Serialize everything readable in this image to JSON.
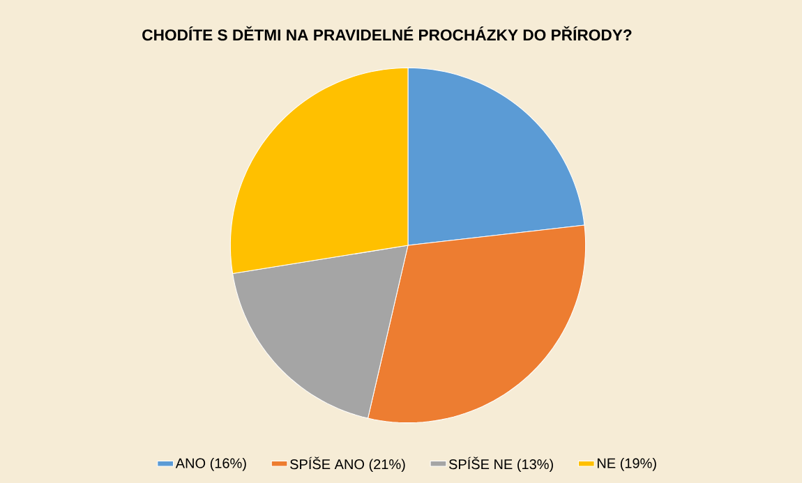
{
  "chart_data": {
    "type": "pie",
    "title": "CHODÍTE S DĚTMI NA PRAVIDELNÉ PROCHÁZKY DO PŘÍRODY?",
    "categories": [
      "ANO (16%)",
      "SPÍŠE ANO (21%)",
      "SPÍŠE NE (13%)",
      "NE (19%)"
    ],
    "values": [
      16,
      21,
      13,
      19
    ],
    "colors": [
      "#5b9bd5",
      "#ed7d31",
      "#a5a5a5",
      "#ffc000"
    ],
    "legend": "bottom"
  }
}
